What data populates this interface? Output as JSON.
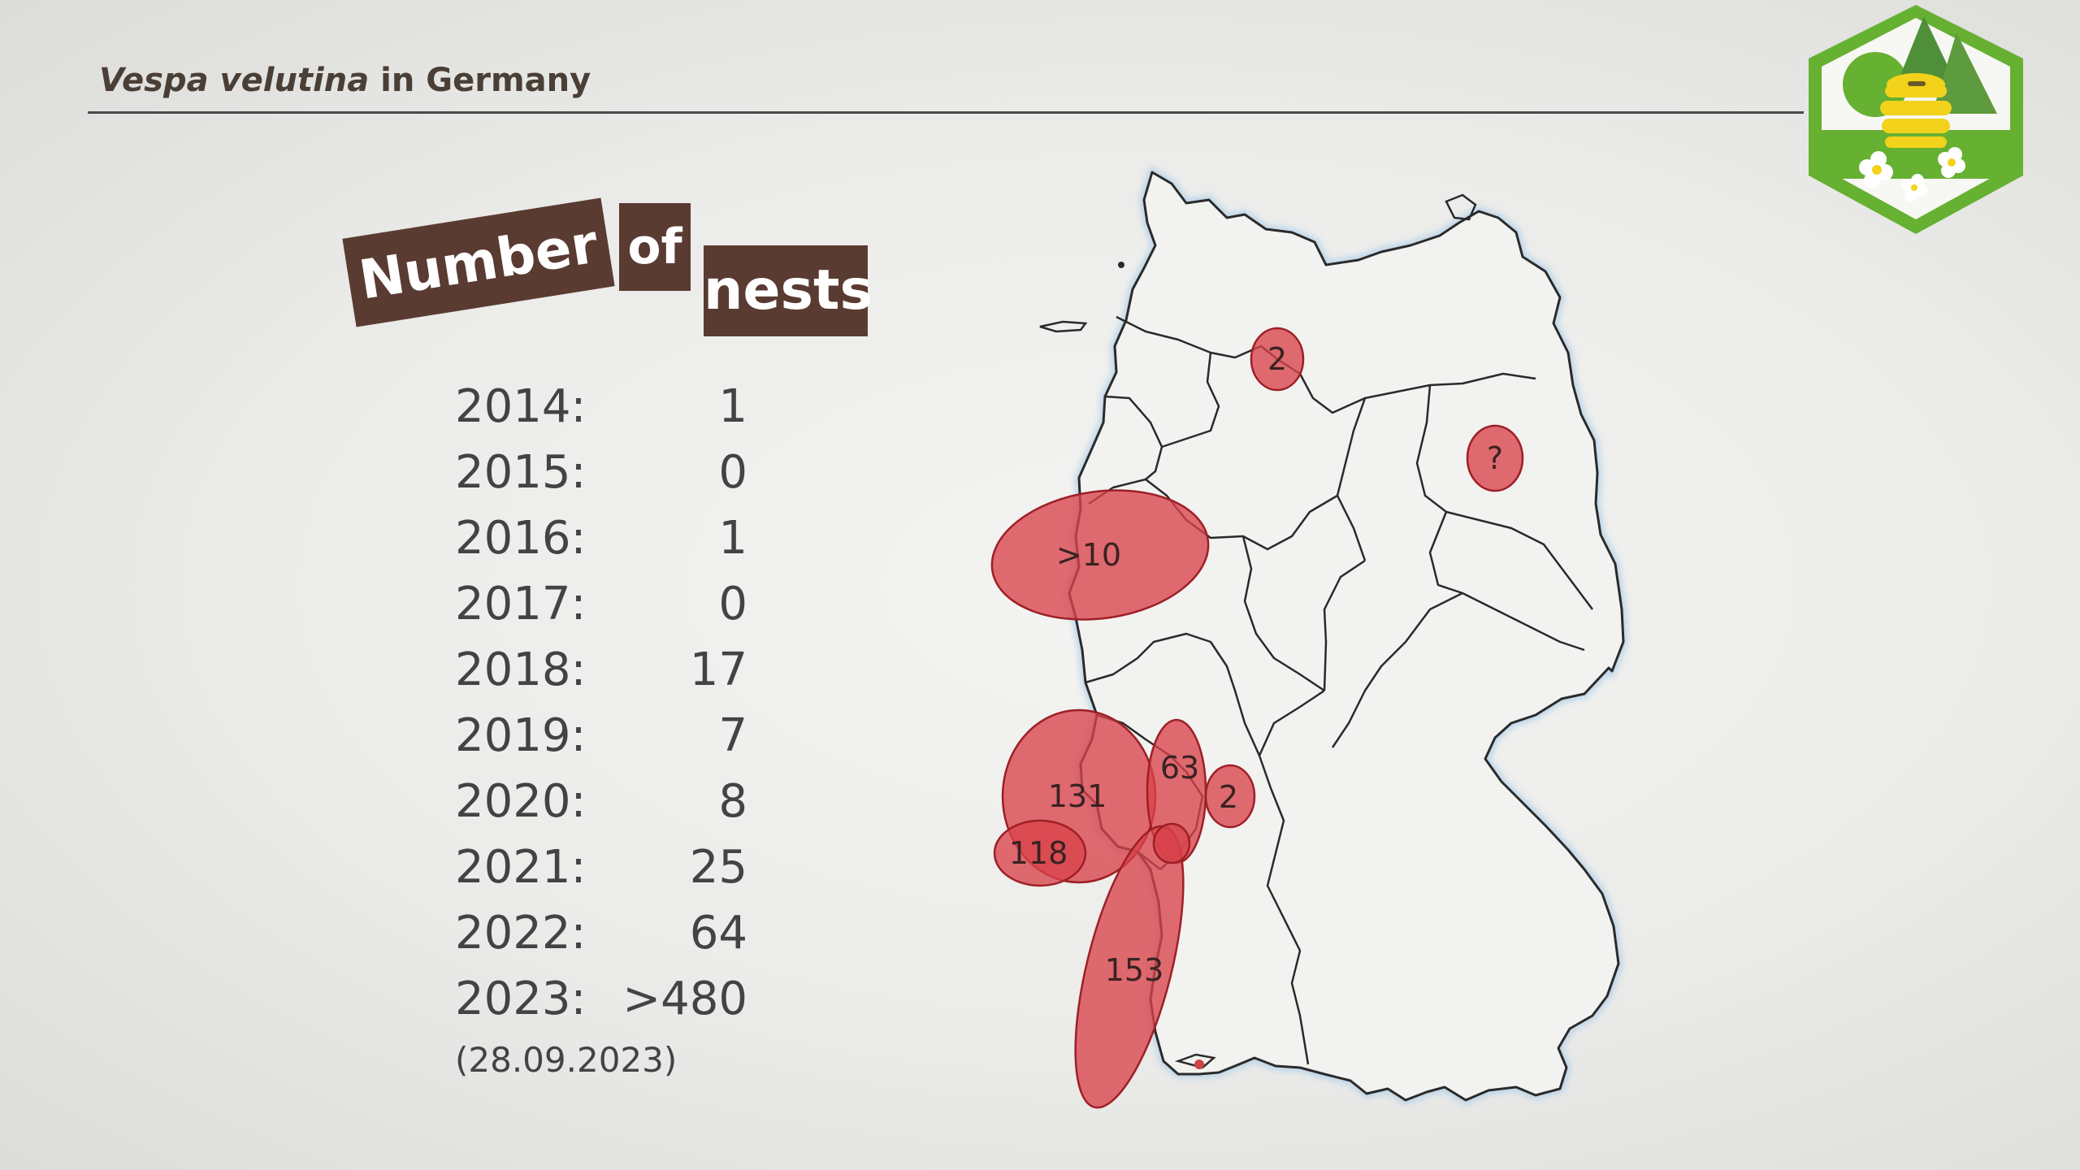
{
  "slide": {
    "title_species": "Vespa velutina",
    "title_rest": " in Germany"
  },
  "heading": {
    "words": [
      "Number",
      "of",
      "nests"
    ]
  },
  "nest_counts": [
    {
      "year": "2014:",
      "count": "1"
    },
    {
      "year": "2015:",
      "count": "0"
    },
    {
      "year": "2016:",
      "count": "1"
    },
    {
      "year": "2017:",
      "count": "0"
    },
    {
      "year": "2018:",
      "count": "17"
    },
    {
      "year": "2019:",
      "count": "7"
    },
    {
      "year": "2020:",
      "count": "8"
    },
    {
      "year": "2021:",
      "count": "25"
    },
    {
      "year": "2022:",
      "count": "64"
    },
    {
      "year": "2023:",
      "count": ">480"
    }
  ],
  "date_note": "(28.09.2023)",
  "map": {
    "region_labels": [
      ">10",
      "131",
      "118",
      "63",
      "2",
      "153",
      "2",
      "?"
    ]
  },
  "colors": {
    "heading_bg": "#5a3b32",
    "ellipse_fill": "#d9434a",
    "ellipse_stroke": "#9e1f26",
    "text": "#444242",
    "logo_green": "#66b032",
    "logo_yellow": "#f2d21b"
  }
}
